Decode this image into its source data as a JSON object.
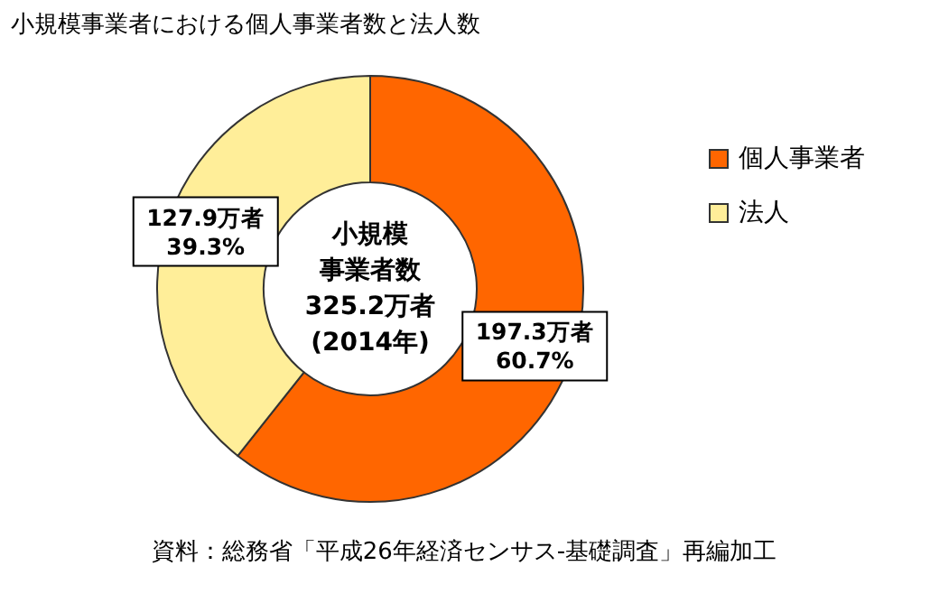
{
  "chart_data": {
    "type": "donut",
    "title": "小規模事業者における個人事業者数と法人数",
    "categories": [
      "個人事業者",
      "法人"
    ],
    "values": [
      197.3,
      127.9
    ],
    "colors": [
      "#ff6600",
      "#ffee99"
    ],
    "value_labels": [
      "197.3万者\n60.7%",
      "127.9万者\n39.3%"
    ],
    "legend": "right",
    "annotations": [
      "小規模事業者数\n325.2万者\n(2014年)",
      "資料：総務省「平成26年経済センサス-基礎調査」再編加工"
    ]
  }
}
